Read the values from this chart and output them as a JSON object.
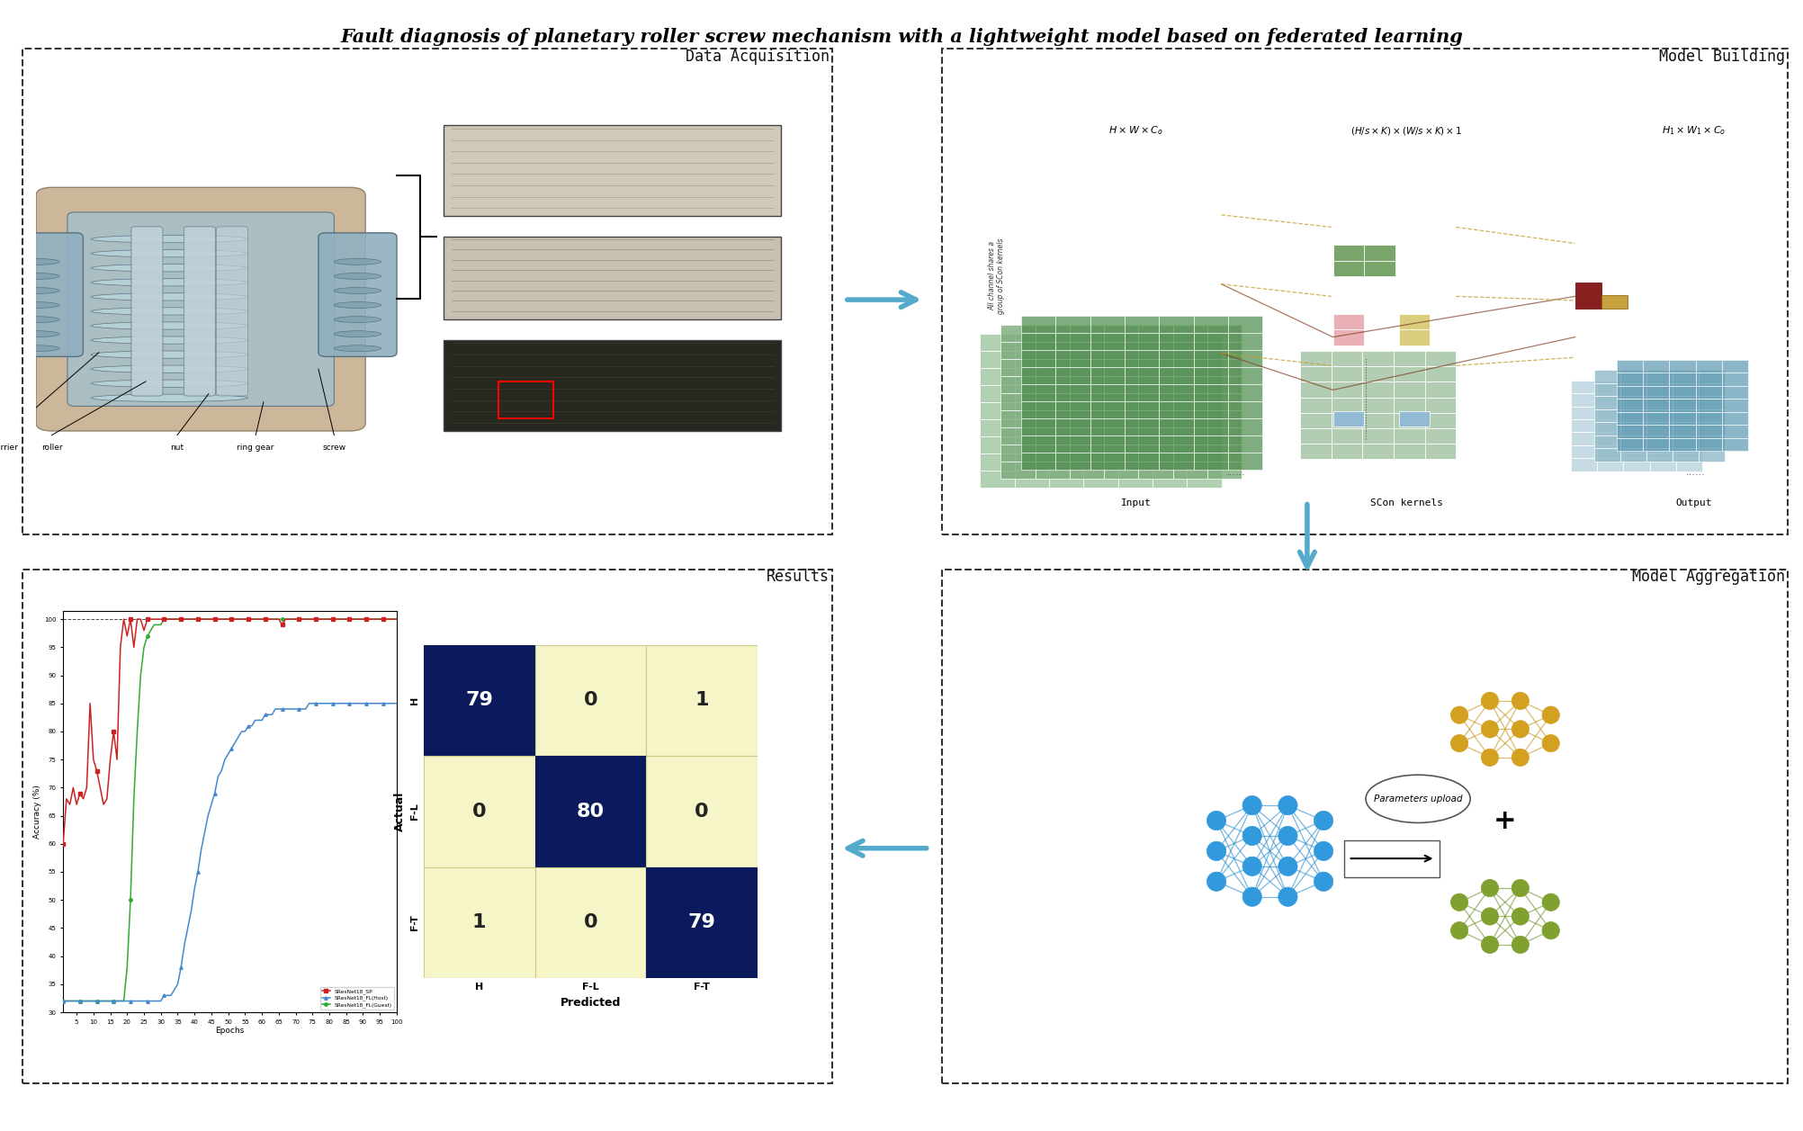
{
  "title": "Fault diagnosis of planetary roller screw mechanism with a lightweight model based on federated learning",
  "title_fontsize": 15,
  "title_fontweight": "bold",
  "background_color": "#ffffff",
  "panel_labels": {
    "data_acq": "Data Acquisition",
    "model_build": "Model Building",
    "results": "Results",
    "model_agg": "Model Aggregation"
  },
  "accuracy_data": {
    "epochs": [
      1,
      2,
      3,
      4,
      5,
      6,
      7,
      8,
      9,
      10,
      11,
      12,
      13,
      14,
      15,
      16,
      17,
      18,
      19,
      20,
      21,
      22,
      23,
      24,
      25,
      26,
      27,
      28,
      29,
      30,
      31,
      32,
      33,
      34,
      35,
      36,
      37,
      38,
      39,
      40,
      41,
      42,
      43,
      44,
      45,
      46,
      47,
      48,
      49,
      50,
      51,
      52,
      53,
      54,
      55,
      56,
      57,
      58,
      59,
      60,
      61,
      62,
      63,
      64,
      65,
      66,
      67,
      68,
      69,
      70,
      71,
      72,
      73,
      74,
      75,
      76,
      77,
      78,
      79,
      80,
      81,
      82,
      83,
      84,
      85,
      86,
      87,
      88,
      89,
      90,
      91,
      92,
      93,
      94,
      95,
      96,
      97,
      98,
      99,
      100
    ],
    "sp": [
      60,
      68,
      67,
      70,
      67,
      69,
      68,
      70,
      85,
      75,
      73,
      70,
      67,
      68,
      75,
      80,
      75,
      95,
      100,
      97,
      100,
      95,
      100,
      100,
      98,
      100,
      100,
      100,
      100,
      100,
      100,
      100,
      100,
      100,
      100,
      100,
      100,
      100,
      100,
      100,
      100,
      100,
      100,
      100,
      100,
      100,
      100,
      100,
      100,
      100,
      100,
      100,
      100,
      100,
      100,
      100,
      100,
      100,
      100,
      100,
      100,
      100,
      100,
      100,
      100,
      99,
      100,
      100,
      100,
      100,
      100,
      100,
      100,
      100,
      100,
      100,
      100,
      100,
      100,
      100,
      100,
      100,
      100,
      100,
      100,
      100,
      100,
      100,
      100,
      100,
      100,
      100,
      100,
      100,
      100,
      100,
      100,
      100,
      100,
      100
    ],
    "host": [
      32,
      32,
      32,
      32,
      32,
      32,
      32,
      32,
      32,
      32,
      32,
      32,
      32,
      32,
      32,
      32,
      32,
      32,
      32,
      32,
      32,
      32,
      32,
      32,
      32,
      32,
      32,
      32,
      32,
      32,
      33,
      33,
      33,
      34,
      35,
      38,
      42,
      45,
      48,
      52,
      55,
      59,
      62,
      65,
      67,
      69,
      72,
      73,
      75,
      76,
      77,
      78,
      79,
      80,
      80,
      81,
      81,
      82,
      82,
      82,
      83,
      83,
      83,
      84,
      84,
      84,
      84,
      84,
      84,
      84,
      84,
      84,
      84,
      85,
      85,
      85,
      85,
      85,
      85,
      85,
      85,
      85,
      85,
      85,
      85,
      85,
      85,
      85,
      85,
      85,
      85,
      85,
      85,
      85,
      85,
      85,
      85,
      85,
      85,
      85
    ],
    "guest": [
      32,
      32,
      32,
      32,
      32,
      32,
      32,
      32,
      32,
      32,
      32,
      32,
      32,
      32,
      32,
      32,
      32,
      32,
      32,
      38,
      50,
      68,
      80,
      90,
      95,
      97,
      98,
      99,
      99,
      99,
      100,
      100,
      100,
      100,
      100,
      100,
      100,
      100,
      100,
      100,
      100,
      100,
      100,
      100,
      100,
      100,
      100,
      100,
      100,
      100,
      100,
      100,
      100,
      100,
      100,
      100,
      100,
      100,
      100,
      100,
      100,
      100,
      100,
      100,
      100,
      100,
      100,
      100,
      100,
      100,
      100,
      100,
      100,
      100,
      100,
      100,
      100,
      100,
      100,
      100,
      100,
      100,
      100,
      100,
      100,
      100,
      100,
      100,
      100,
      100,
      100,
      100,
      100,
      100,
      100,
      100,
      100,
      100,
      100,
      100
    ],
    "sp_color": "#cc2222",
    "host_color": "#4488cc",
    "guest_color": "#33aa33",
    "yticks": [
      30,
      35,
      40,
      45,
      50,
      55,
      60,
      65,
      70,
      75,
      80,
      85,
      90,
      95,
      100
    ],
    "xticks": [
      5,
      10,
      15,
      20,
      25,
      30,
      35,
      40,
      45,
      50,
      55,
      60,
      65,
      70,
      75,
      80,
      85,
      90,
      95,
      100
    ]
  },
  "confusion_matrix": {
    "data": [
      [
        79,
        0,
        1
      ],
      [
        0,
        80,
        0
      ],
      [
        1,
        0,
        79
      ]
    ],
    "labels": [
      "H",
      "F-L",
      "F-T"
    ],
    "dark_color": "#0a1a5c",
    "light_color": "#f5f5c8",
    "text_color_dark": "#ffffff",
    "text_color_light": "#222222",
    "fontsize_nums": 16,
    "xlabel": "Predicted",
    "ylabel": "Actual"
  },
  "arrow_color": "#55aacc",
  "panels": {
    "data_acq": [
      0.01,
      0.525,
      0.455,
      0.435
    ],
    "model_build": [
      0.52,
      0.525,
      0.475,
      0.435
    ],
    "results": [
      0.01,
      0.04,
      0.455,
      0.46
    ],
    "model_agg": [
      0.52,
      0.04,
      0.475,
      0.46
    ]
  },
  "dashed_box_color": "#333333",
  "dashed_linewidth": 1.5,
  "mb_input_colors": [
    "#4a7a4a",
    "#6a9a5a",
    "#90b870",
    "#b8d898"
  ],
  "mb_kernel_colors": [
    "#4a7a4a",
    "#b8c890",
    "#e8a8b0",
    "#90b8d8",
    "#d8c870"
  ],
  "mb_output_colors": [
    "#4a7a4a",
    "#70a898",
    "#98c8b8",
    "#b8d8d0"
  ],
  "nn_blue_color": "#3399cc",
  "nn_gold_color": "#c8a020",
  "nn_olive_color": "#7a9a30"
}
